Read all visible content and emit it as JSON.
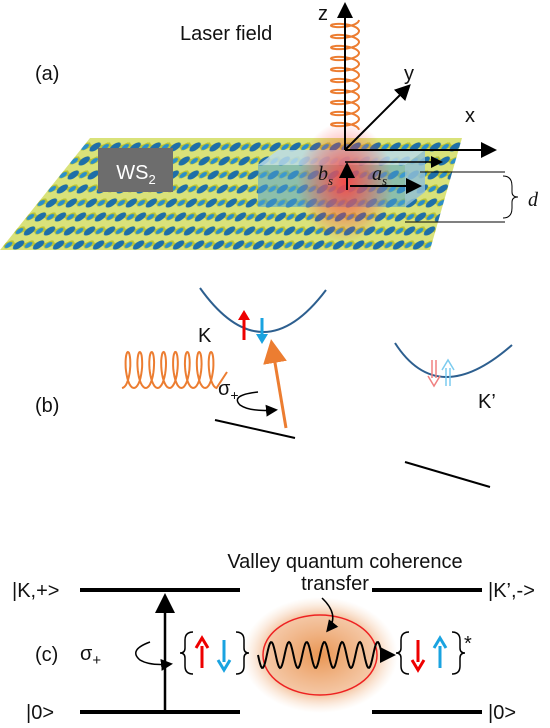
{
  "panel_a": {
    "label": "(a)",
    "laser": "Laser field",
    "axes": {
      "z": "z",
      "y": "y",
      "x": "x"
    },
    "material": {
      "text": "WS",
      "sub": "2"
    },
    "b": {
      "text": "b",
      "sub": "s"
    },
    "a": {
      "text": "a",
      "sub": "s"
    },
    "d": "d"
  },
  "panel_b": {
    "label": "(b)",
    "k": "K",
    "k_prime": "K’",
    "sigma": {
      "text": "σ",
      "sub": "+"
    }
  },
  "panel_c": {
    "label": "(c)",
    "title": "Valley quantum coherence",
    "transfer": "transfer",
    "state_k": "|K,+>",
    "state_k_prime": "|K’,->",
    "ground_left": "|0>",
    "ground_right": "|0>",
    "sigma": {
      "text": "σ",
      "sub": "+"
    },
    "star": "*"
  }
}
